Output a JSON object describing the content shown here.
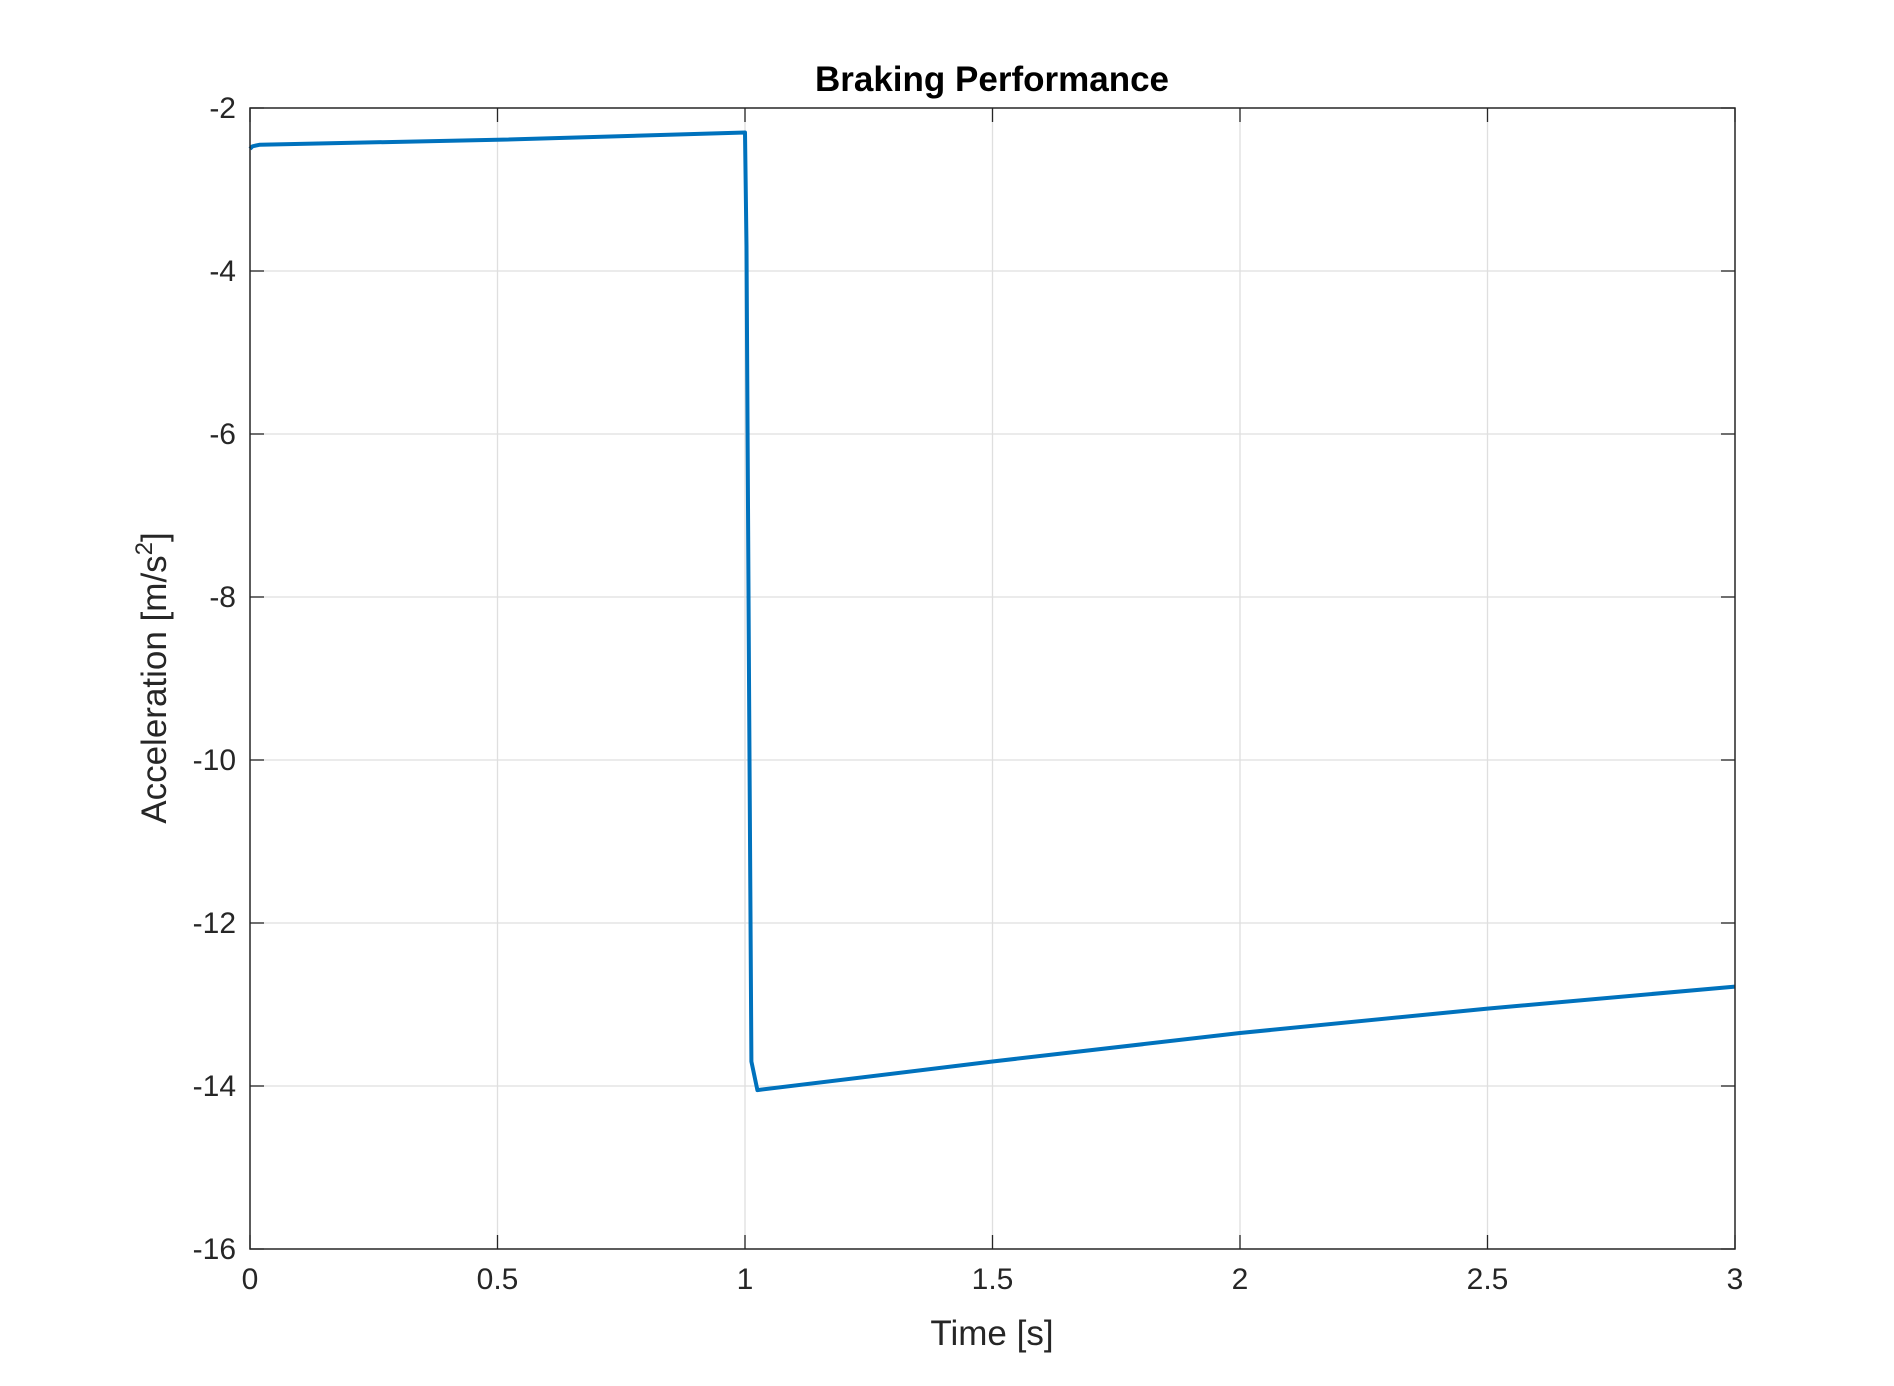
{
  "chart_data": {
    "type": "line",
    "title": "Braking Performance",
    "xlabel": "Time [s]",
    "ylabel": {
      "main": "Acceleration [m/s",
      "superscript": "2",
      "close": "]"
    },
    "xlim": [
      0,
      3
    ],
    "ylim": [
      -16,
      -2
    ],
    "xticks": [
      0,
      0.5,
      1,
      1.5,
      2,
      2.5,
      3
    ],
    "xtick_labels": [
      "0",
      "0.5",
      "1",
      "1.5",
      "2",
      "2.5",
      "3"
    ],
    "yticks": [
      -16,
      -14,
      -12,
      -10,
      -8,
      -6,
      -4,
      -2
    ],
    "ytick_labels": [
      "-16",
      "-14",
      "-12",
      "-10",
      "-8",
      "-6",
      "-4",
      "-2"
    ],
    "grid": true,
    "series": [
      {
        "color": "#0072BD",
        "x": [
          0,
          0.005,
          0.02,
          0.5,
          1.0,
          1.003,
          1.008,
          1.013,
          1.025,
          1.5,
          2.0,
          2.5,
          3.0
        ],
        "y": [
          -2.5,
          -2.47,
          -2.45,
          -2.39,
          -2.3,
          -3.7,
          -9.0,
          -13.7,
          -14.05,
          -13.7,
          -13.35,
          -13.05,
          -12.78
        ]
      }
    ]
  }
}
